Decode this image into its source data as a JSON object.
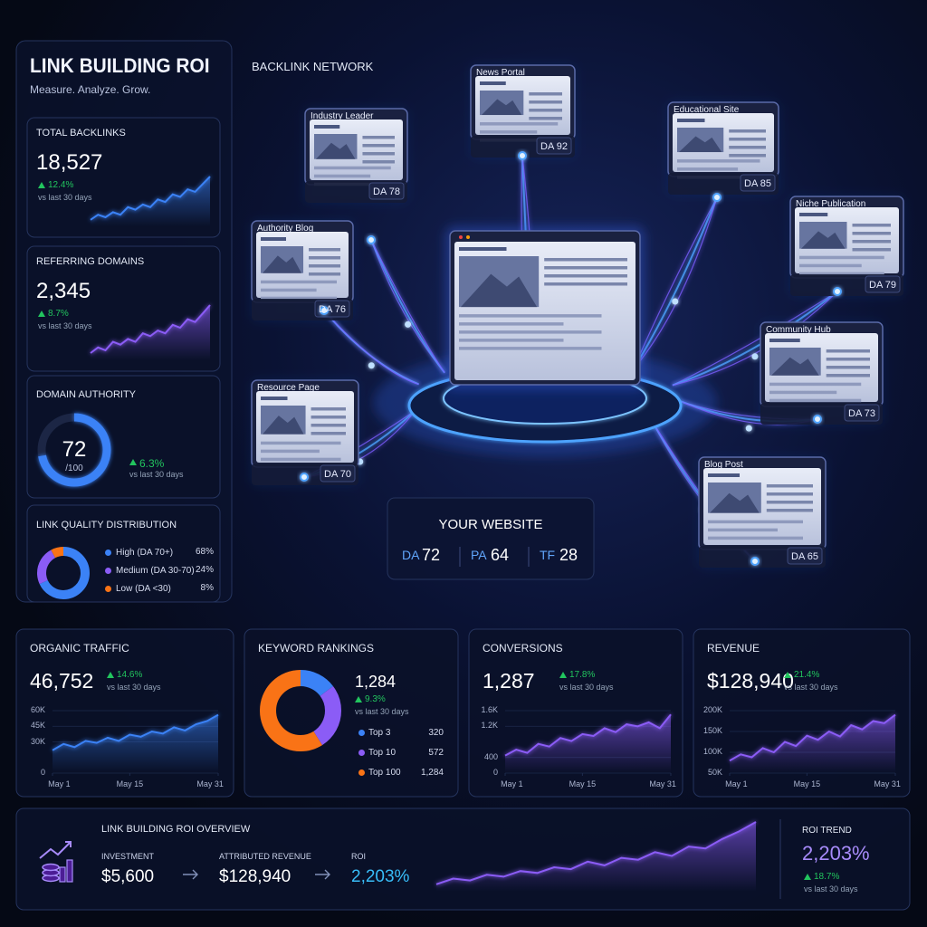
{
  "sidebar": {
    "title": "LINK BUILDING ROI",
    "subtitle": "Measure. Analyze. Grow.",
    "total_backlinks": {
      "label": "TOTAL BACKLINKS",
      "value": "18,527",
      "change": "12.4%",
      "period": "vs last 30 days",
      "color": "#3b82f6",
      "trend": [
        10,
        12,
        11,
        13,
        12,
        15,
        14,
        16,
        15,
        18,
        17,
        20,
        19,
        22,
        21,
        24,
        27
      ]
    },
    "referring_domains": {
      "label": "REFERRING DOMAINS",
      "value": "2,345",
      "change": "8.7%",
      "period": "vs last 30 days",
      "color": "#8b5cf6",
      "trend": [
        8,
        10,
        9,
        12,
        11,
        13,
        12,
        15,
        14,
        16,
        15,
        18,
        17,
        20,
        19,
        22,
        25
      ]
    },
    "domain_authority": {
      "label": "DOMAIN AUTHORITY",
      "value": 72,
      "max": 100,
      "max_label": "/100",
      "change": "6.3%",
      "period": "vs last 30 days"
    },
    "link_quality": {
      "label": "LINK QUALITY DISTRIBUTION",
      "segments": [
        {
          "name": "High (DA 70+)",
          "value": 68,
          "value_label": "68%",
          "color": "#3b82f6"
        },
        {
          "name": "Medium (DA 30-70)",
          "value": 24,
          "value_label": "24%",
          "color": "#8b5cf6"
        },
        {
          "name": "Low (DA <30)",
          "value": 8,
          "value_label": "8%",
          "color": "#f97316"
        }
      ]
    }
  },
  "network": {
    "title": "BACKLINK NETWORK",
    "nodes": [
      {
        "label": "Industry Leader",
        "da": "DA 78"
      },
      {
        "label": "News Portal",
        "da": "DA 92"
      },
      {
        "label": "Educational Site",
        "da": "DA 85"
      },
      {
        "label": "Niche Publication",
        "da": "DA 79"
      },
      {
        "label": "Authority Blog",
        "da": "DA 76"
      },
      {
        "label": "Community Hub",
        "da": "DA 73"
      },
      {
        "label": "Resource Page",
        "da": "DA 70"
      },
      {
        "label": "Blog Post",
        "da": "DA 65"
      }
    ],
    "center": {
      "title": "YOUR WEBSITE",
      "metrics": [
        {
          "name": "DA",
          "value": "72"
        },
        {
          "name": "PA",
          "value": "64"
        },
        {
          "name": "TF",
          "value": "28"
        }
      ]
    }
  },
  "cards": [
    {
      "label": "ORGANIC TRAFFIC",
      "value": "46,752",
      "change": "14.6%",
      "period": "vs last 30 days",
      "chart": {
        "type": "area",
        "color": "#3b82f6",
        "x": [
          1,
          3,
          5,
          7,
          9,
          11,
          13,
          15,
          17,
          19,
          21,
          23,
          25,
          27,
          29,
          31
        ],
        "values": [
          22000,
          28000,
          25000,
          31000,
          29000,
          34000,
          31000,
          37000,
          35000,
          40000,
          38000,
          44000,
          41000,
          47000,
          50000,
          56000
        ],
        "xlim": [
          1,
          31
        ],
        "xticks": [
          {
            "value": 1,
            "label": "May 1"
          },
          {
            "value": 15,
            "label": "May 15"
          },
          {
            "value": 31,
            "label": "May 31"
          }
        ],
        "ylim": [
          0,
          60000
        ],
        "yticks": [
          {
            "value": 0,
            "label": "0"
          },
          {
            "value": 30000,
            "label": "30K"
          },
          {
            "value": 45000,
            "label": "45K"
          },
          {
            "value": 60000,
            "label": "60K"
          }
        ]
      }
    },
    {
      "label": "KEYWORD RANKINGS",
      "value": "1,284",
      "change": "9.3%",
      "period": "vs last 30 days",
      "chart": {
        "type": "donut",
        "segments": [
          {
            "name": "Top 3",
            "value": 320,
            "color": "#3b82f6"
          },
          {
            "name": "Top 10",
            "value": 572,
            "color": "#8b5cf6"
          },
          {
            "name": "Top 100",
            "value": 1284,
            "value_label": "1,284",
            "color": "#f97316"
          }
        ]
      }
    },
    {
      "label": "CONVERSIONS",
      "value": "1,287",
      "change": "17.8%",
      "period": "vs last 30 days",
      "chart": {
        "type": "area",
        "color": "#8b5cf6",
        "x": [
          1,
          3,
          5,
          7,
          9,
          11,
          13,
          15,
          17,
          19,
          21,
          23,
          25,
          27,
          29,
          31
        ],
        "values": [
          450,
          600,
          520,
          750,
          680,
          900,
          820,
          1000,
          950,
          1150,
          1050,
          1250,
          1200,
          1300,
          1150,
          1500
        ],
        "xlim": [
          1,
          31
        ],
        "xticks": [
          {
            "value": 1,
            "label": "May 1"
          },
          {
            "value": 15,
            "label": "May 15"
          },
          {
            "value": 31,
            "label": "May 31"
          }
        ],
        "ylim": [
          0,
          1600
        ],
        "yticks": [
          {
            "value": 0,
            "label": "0"
          },
          {
            "value": 400,
            "label": "400"
          },
          {
            "value": 1200,
            "label": "1.2K"
          },
          {
            "value": 1600,
            "label": "1.6K"
          }
        ]
      }
    },
    {
      "label": "REVENUE",
      "value": "$128,940",
      "change": "21.4%",
      "period": "vs last 30 days",
      "chart": {
        "type": "area",
        "color": "#8b5cf6",
        "x": [
          1,
          3,
          5,
          7,
          9,
          11,
          13,
          15,
          17,
          19,
          21,
          23,
          25,
          27,
          29,
          31
        ],
        "values": [
          80000,
          95000,
          88000,
          110000,
          100000,
          125000,
          115000,
          140000,
          130000,
          150000,
          138000,
          165000,
          155000,
          175000,
          170000,
          190000
        ],
        "xlim": [
          1,
          31
        ],
        "xticks": [
          {
            "value": 1,
            "label": "May 1"
          },
          {
            "value": 15,
            "label": "May 15"
          },
          {
            "value": 31,
            "label": "May 31"
          }
        ],
        "ylim": [
          50000,
          200000
        ],
        "yticks": [
          {
            "value": 50000,
            "label": "50K"
          },
          {
            "value": 100000,
            "label": "100K"
          },
          {
            "value": 150000,
            "label": "150K"
          },
          {
            "value": 200000,
            "label": "200K"
          }
        ]
      }
    }
  ],
  "roi": {
    "title": "LINK BUILDING ROI OVERVIEW",
    "items": [
      {
        "label": "INVESTMENT",
        "value": "$5,600"
      },
      {
        "label": "ATTRIBUTED REVENUE",
        "value": "$128,940"
      },
      {
        "label": "ROI",
        "value": "2,203%"
      }
    ],
    "trend": [
      5,
      8,
      7,
      10,
      9,
      12,
      11,
      14,
      13,
      17,
      15,
      19,
      18,
      22,
      20,
      25,
      24,
      29,
      33,
      38
    ],
    "trend_label": "ROI TREND",
    "trend_value": "2,203%",
    "change": "18.7%",
    "period": "vs last 30 days"
  }
}
